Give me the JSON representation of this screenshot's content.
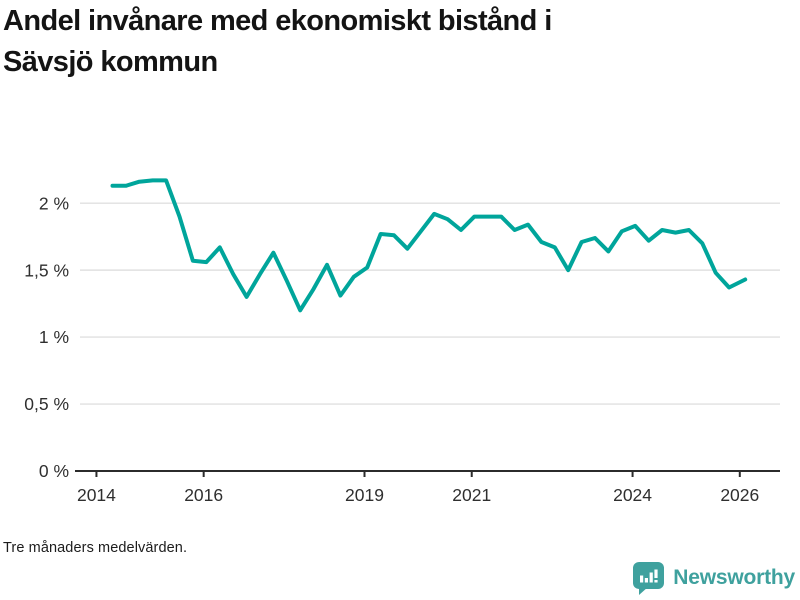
{
  "title": {
    "line1": "Andel invånare med ekonomiskt bistånd i",
    "line2": "Sävsjö kommun"
  },
  "footer": {
    "note": "Tre månaders medelvärden."
  },
  "branding": {
    "name": "Newsworthy",
    "icon": "bar-chart-speech-bubble-icon",
    "color": "#3fa19e"
  },
  "colors": {
    "line": "#00a59b",
    "grid": "#e1e1e1",
    "axis": "#2b2b2b",
    "tick_label": "#2f2f2f",
    "background": "#ffffff"
  },
  "chart_data": {
    "type": "line",
    "title": "Andel invånare med ekonomiskt bistånd i Sävsjö kommun",
    "note": "Tre månaders medelvärden.",
    "series_name": "Sävsjö kommun",
    "xlabel": "",
    "ylabel": "",
    "grid": "horizontal",
    "legend": "none",
    "xlim": [
      2013.6,
      2026.75
    ],
    "ylim": [
      0,
      2.3
    ],
    "x_ticks": [
      {
        "value": 2014,
        "label": "2014"
      },
      {
        "value": 2016,
        "label": "2016"
      },
      {
        "value": 2019,
        "label": "2019"
      },
      {
        "value": 2021,
        "label": "2021"
      },
      {
        "value": 2024,
        "label": "2024"
      },
      {
        "value": 2026,
        "label": "2026"
      }
    ],
    "y_ticks": [
      {
        "value": 0,
        "label": "0 %"
      },
      {
        "value": 0.5,
        "label": "0,5 %"
      },
      {
        "value": 1,
        "label": "1 %"
      },
      {
        "value": 1.5,
        "label": "1,5 %"
      },
      {
        "value": 2,
        "label": "2 %"
      }
    ],
    "x": [
      2014.3,
      2014.55,
      2014.8,
      2015.05,
      2015.3,
      2015.55,
      2015.8,
      2016.05,
      2016.3,
      2016.55,
      2016.8,
      2017.05,
      2017.3,
      2017.55,
      2017.8,
      2018.05,
      2018.3,
      2018.55,
      2018.8,
      2019.05,
      2019.3,
      2019.55,
      2019.8,
      2020.05,
      2020.3,
      2020.55,
      2020.8,
      2021.05,
      2021.3,
      2021.55,
      2021.8,
      2022.05,
      2022.3,
      2022.55,
      2022.8,
      2023.05,
      2023.3,
      2023.55,
      2023.8,
      2024.05,
      2024.3,
      2024.55,
      2024.8,
      2025.05,
      2025.3,
      2025.55,
      2025.8,
      2026.1
    ],
    "values": [
      2.13,
      2.13,
      2.16,
      2.17,
      2.17,
      1.9,
      1.57,
      1.56,
      1.67,
      1.47,
      1.3,
      1.47,
      1.63,
      1.42,
      1.2,
      1.36,
      1.54,
      1.31,
      1.45,
      1.52,
      1.77,
      1.76,
      1.66,
      1.79,
      1.92,
      1.88,
      1.8,
      1.9,
      1.9,
      1.9,
      1.8,
      1.84,
      1.71,
      1.67,
      1.5,
      1.71,
      1.74,
      1.64,
      1.79,
      1.83,
      1.72,
      1.8,
      1.78,
      1.8,
      1.7,
      1.48,
      1.37,
      1.43
    ]
  }
}
